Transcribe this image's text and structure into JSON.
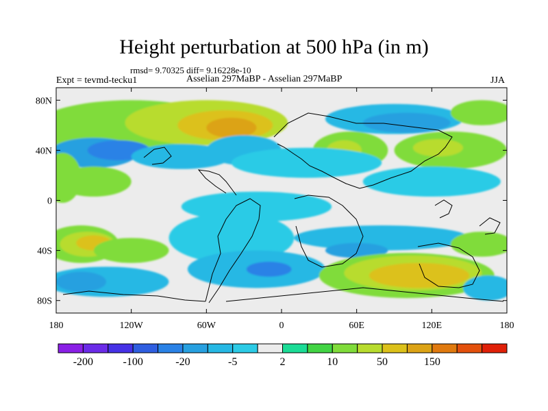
{
  "chart_data": {
    "type": "heatmap",
    "title": "Height perturbation at 500 hPa (in m)",
    "stats_line": "rmsd= 9.70325 diff= 9.16228e-10",
    "left_label": "Expt = tevmd-tecku1",
    "center_label": "Asselian 297MaBP - Asselian 297MaBP",
    "right_label": "JJA",
    "map": {
      "lon_range": [
        -180,
        180
      ],
      "lat_range": [
        -90,
        90
      ],
      "x_ticks": [
        {
          "value": -180,
          "label": "180"
        },
        {
          "value": -120,
          "label": "120W"
        },
        {
          "value": -60,
          "label": "60W"
        },
        {
          "value": 0,
          "label": "0"
        },
        {
          "value": 60,
          "label": "60E"
        },
        {
          "value": 120,
          "label": "120E"
        },
        {
          "value": 180,
          "label": "180"
        }
      ],
      "y_ticks": [
        {
          "value": 80,
          "label": "80N"
        },
        {
          "value": 40,
          "label": "40N"
        },
        {
          "value": 0,
          "label": "0"
        },
        {
          "value": -40,
          "label": "40S"
        },
        {
          "value": -80,
          "label": "80S"
        }
      ]
    },
    "colorbar": {
      "colors": [
        "#8a1fe6",
        "#6b2be8",
        "#4631e6",
        "#2f5ee0",
        "#2a82e6",
        "#27a0e0",
        "#26b8e4",
        "#2ccbe6",
        "#ececec",
        "#1bdc96",
        "#42d444",
        "#80dc3a",
        "#b8dc2e",
        "#dcc11a",
        "#dca316",
        "#e07a0f",
        "#e3500c",
        "#e02008"
      ],
      "tick_labels": [
        {
          "boundary": 1,
          "label": "-200"
        },
        {
          "boundary": 3,
          "label": "-100"
        },
        {
          "boundary": 5,
          "label": "-20"
        },
        {
          "boundary": 7,
          "label": "-5"
        },
        {
          "boundary": 9,
          "label": "2"
        },
        {
          "boundary": 11,
          "label": "10"
        },
        {
          "boundary": 13,
          "label": "50"
        },
        {
          "boundary": 15,
          "label": "150"
        }
      ]
    },
    "field_blobs": [
      {
        "lon": -150,
        "lat": 55,
        "rx": 45,
        "ry": 18,
        "level": 11
      },
      {
        "lon": -120,
        "lat": 60,
        "rx": 75,
        "ry": 20,
        "level": 11
      },
      {
        "lon": -60,
        "lat": 62,
        "rx": 65,
        "ry": 18,
        "level": 12
      },
      {
        "lon": -45,
        "lat": 60,
        "rx": 38,
        "ry": 12,
        "level": 13
      },
      {
        "lon": -40,
        "lat": 58,
        "rx": 20,
        "ry": 8,
        "level": 14
      },
      {
        "lon": -150,
        "lat": 38,
        "rx": 35,
        "ry": 12,
        "level": 5
      },
      {
        "lon": -130,
        "lat": 40,
        "rx": 25,
        "ry": 8,
        "level": 4
      },
      {
        "lon": -80,
        "lat": 35,
        "rx": 40,
        "ry": 10,
        "level": 6
      },
      {
        "lon": -30,
        "lat": 40,
        "rx": 30,
        "ry": 12,
        "level": 6
      },
      {
        "lon": -175,
        "lat": 18,
        "rx": 15,
        "ry": 20,
        "level": 11
      },
      {
        "lon": -150,
        "lat": 15,
        "rx": 30,
        "ry": 12,
        "level": 11
      },
      {
        "lon": 90,
        "lat": 65,
        "rx": 55,
        "ry": 12,
        "level": 6
      },
      {
        "lon": 100,
        "lat": 62,
        "rx": 35,
        "ry": 8,
        "level": 5
      },
      {
        "lon": 160,
        "lat": 70,
        "rx": 25,
        "ry": 10,
        "level": 11
      },
      {
        "lon": 55,
        "lat": 40,
        "rx": 30,
        "ry": 15,
        "level": 11
      },
      {
        "lon": 50,
        "lat": 40,
        "rx": 14,
        "ry": 8,
        "level": 12
      },
      {
        "lon": 135,
        "lat": 40,
        "rx": 45,
        "ry": 15,
        "level": 11
      },
      {
        "lon": 125,
        "lat": 42,
        "rx": 20,
        "ry": 7,
        "level": 12
      },
      {
        "lon": 20,
        "lat": 30,
        "rx": 60,
        "ry": 12,
        "level": 7
      },
      {
        "lon": 120,
        "lat": 15,
        "rx": 55,
        "ry": 12,
        "level": 7
      },
      {
        "lon": -20,
        "lat": -5,
        "rx": 60,
        "ry": 12,
        "level": 7
      },
      {
        "lon": -160,
        "lat": -35,
        "rx": 30,
        "ry": 15,
        "level": 11
      },
      {
        "lon": -155,
        "lat": -35,
        "rx": 22,
        "ry": 10,
        "level": 12
      },
      {
        "lon": -150,
        "lat": -34,
        "rx": 14,
        "ry": 6,
        "level": 13
      },
      {
        "lon": -120,
        "lat": -40,
        "rx": 30,
        "ry": 10,
        "level": 11
      },
      {
        "lon": -40,
        "lat": -30,
        "rx": 50,
        "ry": 20,
        "level": 7
      },
      {
        "lon": -20,
        "lat": -55,
        "rx": 55,
        "ry": 15,
        "level": 6
      },
      {
        "lon": -10,
        "lat": -55,
        "rx": 18,
        "ry": 6,
        "level": 4
      },
      {
        "lon": -140,
        "lat": -65,
        "rx": 50,
        "ry": 12,
        "level": 6
      },
      {
        "lon": -160,
        "lat": -65,
        "rx": 20,
        "ry": 8,
        "level": 5
      },
      {
        "lon": 80,
        "lat": -30,
        "rx": 70,
        "ry": 10,
        "level": 6
      },
      {
        "lon": 60,
        "lat": -40,
        "rx": 25,
        "ry": 6,
        "level": 5
      },
      {
        "lon": 100,
        "lat": -60,
        "rx": 70,
        "ry": 18,
        "level": 11
      },
      {
        "lon": 105,
        "lat": -58,
        "rx": 55,
        "ry": 14,
        "level": 12
      },
      {
        "lon": 110,
        "lat": -60,
        "rx": 40,
        "ry": 10,
        "level": 13
      },
      {
        "lon": 160,
        "lat": -35,
        "rx": 25,
        "ry": 10,
        "level": 11
      },
      {
        "lon": 165,
        "lat": -70,
        "rx": 20,
        "ry": 10,
        "level": 6
      }
    ],
    "grid": false,
    "legend": "bottom"
  }
}
